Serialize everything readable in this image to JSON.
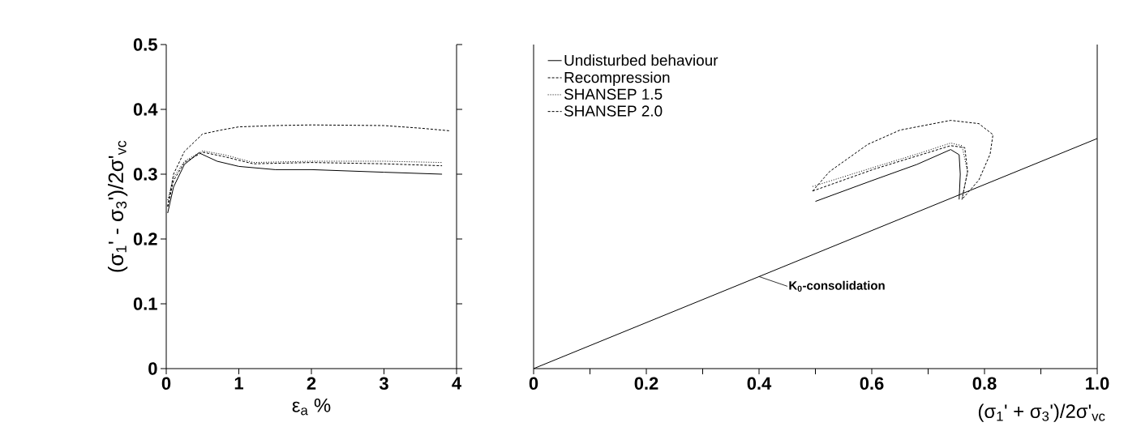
{
  "chart_data": [
    {
      "type": "line",
      "xlabel": "ε$_{a}$ %",
      "ylabel": "(σ$_{1}$' - σ$_{3}$')/2σ'$_{vc}$",
      "xlim": [
        0,
        4
      ],
      "ylim": [
        0,
        0.5
      ],
      "xticks": [
        0,
        1,
        2,
        3,
        4
      ],
      "yticks": [
        0,
        0.1,
        0.2,
        0.3,
        0.4,
        0.5
      ],
      "series": [
        {
          "color": "#000000",
          "line_style": "solid",
          "x": [
            0.02,
            0.1,
            0.25,
            0.45,
            0.7,
            1.0,
            1.5,
            2,
            3,
            3.8
          ],
          "values": [
            0.24,
            0.28,
            0.315,
            0.333,
            0.32,
            0.312,
            0.307,
            0.307,
            0.303,
            0.3
          ]
        },
        {
          "color": "#000000",
          "line_style": "dashed",
          "x": [
            0.02,
            0.1,
            0.25,
            0.5,
            0.75,
            1.0,
            1.5,
            2,
            3,
            3.5,
            3.9
          ],
          "values": [
            0.25,
            0.3,
            0.335,
            0.362,
            0.368,
            0.373,
            0.375,
            0.376,
            0.375,
            0.371,
            0.367
          ]
        },
        {
          "color": "#000000",
          "line_style": "dotted",
          "x": [
            0.02,
            0.1,
            0.25,
            0.5,
            0.8,
            1.2,
            2,
            3,
            3.8
          ],
          "values": [
            0.26,
            0.295,
            0.32,
            0.336,
            0.33,
            0.318,
            0.32,
            0.32,
            0.318
          ]
        },
        {
          "color": "#000000",
          "line_style": "dashed",
          "x": [
            0.02,
            0.1,
            0.25,
            0.5,
            0.8,
            1.2,
            2,
            3,
            3.8
          ],
          "values": [
            0.25,
            0.29,
            0.318,
            0.334,
            0.327,
            0.316,
            0.318,
            0.316,
            0.313
          ]
        }
      ]
    },
    {
      "type": "line",
      "xlabel": "(σ$_{1}$' + σ$_{3}$')/2σ'$_{vc}$",
      "xlim": [
        0,
        1.0
      ],
      "ylim": [
        0,
        0.5
      ],
      "tick_labels": "x",
      "legend": "top left",
      "xticks": [
        0,
        {
          "value": 0.1,
          "label": null
        },
        0.2,
        {
          "value": 0.3,
          "label": null
        },
        0.4,
        {
          "value": 0.5,
          "label": null
        },
        0.6,
        {
          "value": 0.7,
          "label": null
        },
        0.8,
        {
          "value": 0.9,
          "label": null
        },
        {
          "value": 1.0,
          "label": "1.0"
        }
      ],
      "annotations": [
        {
          "text": "K$_{0}$-consolidation",
          "x": 0.4,
          "y": 0.142
        }
      ],
      "series": [
        {
          "name": "Undisturbed behaviour",
          "color": "#000000",
          "line_style": "solid",
          "x": [
            0.5,
            0.6,
            0.68,
            0.74,
            0.755,
            0.757,
            0.755
          ],
          "values": [
            0.258,
            0.29,
            0.315,
            0.338,
            0.33,
            0.3,
            0.261
          ]
        },
        {
          "name": "Recompression",
          "color": "#000000",
          "line_style": "dashed",
          "x": [
            0.495,
            0.525,
            0.593,
            0.65,
            0.74,
            0.79,
            0.815,
            0.81,
            0.79,
            0.76
          ],
          "values": [
            0.274,
            0.304,
            0.346,
            0.368,
            0.383,
            0.378,
            0.361,
            0.331,
            0.291,
            0.261
          ]
        },
        {
          "name": "SHANSEP 1.5",
          "color": "#000000",
          "line_style": "dotted",
          "x": [
            0.495,
            0.605,
            0.68,
            0.74,
            0.76,
            0.77,
            0.76
          ],
          "values": [
            0.281,
            0.311,
            0.331,
            0.348,
            0.344,
            0.304,
            0.261
          ]
        },
        {
          "name": "SHANSEP 2.0",
          "color": "#000000",
          "line_style": "dashed",
          "x": [
            0.495,
            0.605,
            0.68,
            0.74,
            0.765,
            0.77,
            0.76
          ],
          "values": [
            0.274,
            0.308,
            0.328,
            0.344,
            0.341,
            0.304,
            0.261
          ]
        },
        {
          "color": "#000000",
          "line_style": "solid",
          "x": [
            0,
            1.0
          ],
          "values": [
            0,
            0.355
          ]
        }
      ]
    }
  ]
}
